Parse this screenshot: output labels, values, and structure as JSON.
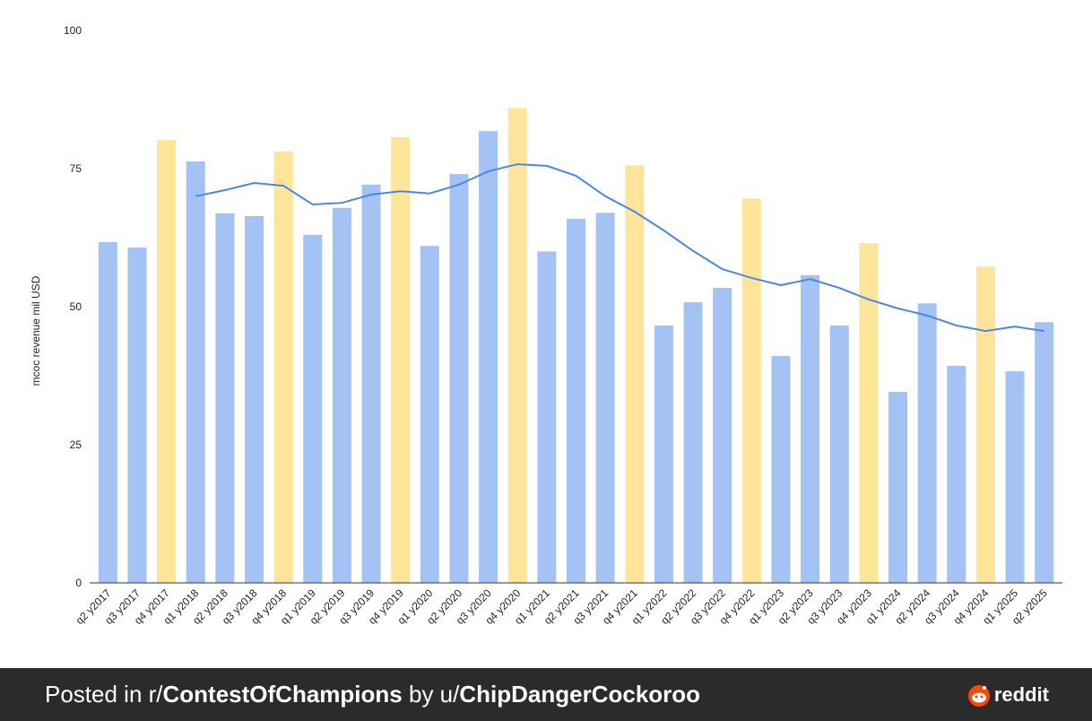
{
  "chart_data": {
    "type": "bar",
    "y_label": "mcoc revenue mil USD",
    "categories": [
      "q2 y2017",
      "q3 y2017",
      "q4 y2017",
      "q1 y2018",
      "q2 y2018",
      "q3 y2018",
      "q4 y2018",
      "q1 y2019",
      "q2 y2019",
      "q3 y2019",
      "q4 y2019",
      "q1 y2020",
      "q2 y2020",
      "q3 y2020",
      "q4 y2020",
      "q1 y2021",
      "q2 y2021",
      "q3 y2021",
      "q4 y2021",
      "q1 y2022",
      "q2 y2022",
      "q3 y2022",
      "q4 y2022",
      "q1 y2023",
      "q2 y2023",
      "q3 y2023",
      "q4 y2023",
      "q1 y2024",
      "q2 y2024",
      "q3 y2024",
      "q4 y2024",
      "q1 y2025",
      "q2 y2025"
    ],
    "values": [
      61.7,
      60.7,
      80.2,
      76.3,
      66.9,
      66.4,
      78.1,
      63,
      67.9,
      72.1,
      80.7,
      61,
      74,
      81.8,
      86,
      60,
      65.9,
      67,
      75.6,
      46.6,
      50.8,
      53.4,
      69.6,
      41.1,
      55.7,
      46.6,
      61.5,
      34.6,
      50.6,
      39.3,
      57.3,
      38.3,
      47.2
    ],
    "colors": [
      "#a4c2f4",
      "#a4c2f4",
      "#ffe599",
      "#a4c2f4",
      "#a4c2f4",
      "#a4c2f4",
      "#ffe599",
      "#a4c2f4",
      "#a4c2f4",
      "#a4c2f4",
      "#ffe599",
      "#a4c2f4",
      "#a4c2f4",
      "#a4c2f4",
      "#ffe599",
      "#a4c2f4",
      "#a4c2f4",
      "#a4c2f4",
      "#ffe599",
      "#a4c2f4",
      "#a4c2f4",
      "#a4c2f4",
      "#ffe599",
      "#a4c2f4",
      "#a4c2f4",
      "#a4c2f4",
      "#ffe599",
      "#a4c2f4",
      "#a4c2f4",
      "#a4c2f4",
      "#ffe599",
      "#a4c2f4",
      "#a4c2f4"
    ],
    "line_values": [
      null,
      null,
      null,
      70,
      71.1,
      72.4,
      71.9,
      68.5,
      68.8,
      70.3,
      70.9,
      70.5,
      72.1,
      74.5,
      75.8,
      75.5,
      73.7,
      70,
      67.2,
      63.8,
      60.1,
      56.8,
      55.2,
      53.9,
      55,
      53.4,
      51.3,
      49.7,
      48.4,
      46.6,
      45.6,
      46.4,
      45.6
    ],
    "line_color": "#4a86e8",
    "ylim": [
      0,
      100
    ],
    "yticks": [
      0,
      25,
      50,
      75,
      100
    ],
    "grid": false
  },
  "footer": {
    "prefix": "Posted in r/",
    "subreddit": "ContestOfChampions",
    "middle": "by u/",
    "user": "ChipDangerCockoroo",
    "brand": "reddit"
  }
}
